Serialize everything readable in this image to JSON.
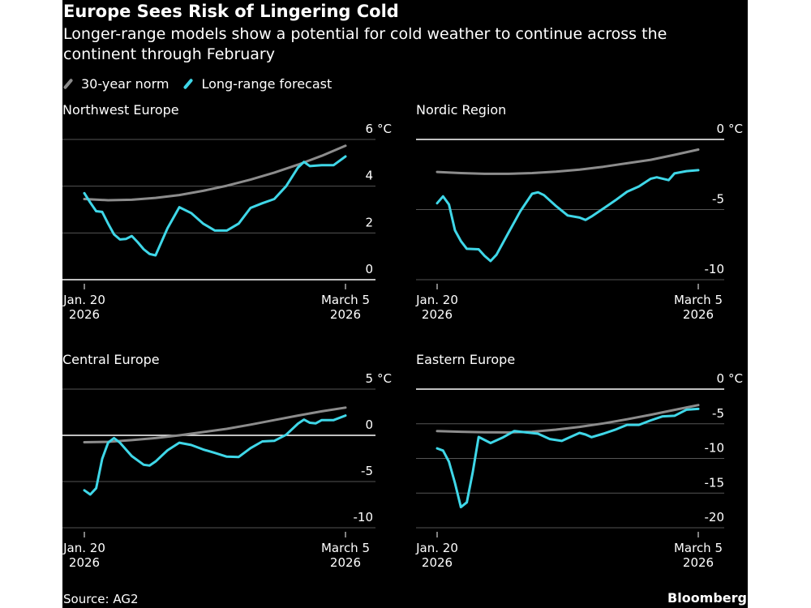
{
  "title": "Europe Sees Risk of Lingering Cold",
  "subtitle": "Longer-range models show a potential for cold weather to continue across the continent through February",
  "legend": [
    {
      "label": "30-year norm",
      "color": "#8c8c8c"
    },
    {
      "label": "Long-range forecast",
      "color": "#3fd7e8"
    }
  ],
  "source": "Source: AG2",
  "brand": "Bloomberg",
  "chart_data": [
    {
      "type": "line",
      "title": "Northwest Europe",
      "unit": "°C",
      "ylim": [
        0,
        6
      ],
      "yticks": [
        0,
        2,
        4,
        6
      ],
      "xlim": [
        "2026-01-20",
        "2026-03-05"
      ],
      "xticks": [
        {
          "line1": "Jan. 20",
          "line2": "2026"
        },
        {
          "line1": "March 5",
          "line2": "2026"
        }
      ],
      "grid": true,
      "series": [
        {
          "name": "30-year norm",
          "color": "#8c8c8c",
          "points": [
            [
              "2026-01-20",
              3.45
            ],
            [
              "2026-01-24",
              3.4
            ],
            [
              "2026-01-28",
              3.42
            ],
            [
              "2026-02-01",
              3.5
            ],
            [
              "2026-02-05",
              3.62
            ],
            [
              "2026-02-09",
              3.8
            ],
            [
              "2026-02-13",
              4.02
            ],
            [
              "2026-02-17",
              4.28
            ],
            [
              "2026-02-21",
              4.58
            ],
            [
              "2026-02-25",
              4.92
            ],
            [
              "2026-03-01",
              5.3
            ],
            [
              "2026-03-05",
              5.73
            ]
          ]
        },
        {
          "name": "Long-range forecast",
          "color": "#3fd7e8",
          "points": [
            [
              "2026-01-20",
              3.7
            ],
            [
              "2026-01-21",
              3.3
            ],
            [
              "2026-01-22",
              2.93
            ],
            [
              "2026-01-23",
              2.9
            ],
            [
              "2026-01-24",
              2.4
            ],
            [
              "2026-01-25",
              1.94
            ],
            [
              "2026-01-26",
              1.72
            ],
            [
              "2026-01-27",
              1.74
            ],
            [
              "2026-01-28",
              1.87
            ],
            [
              "2026-01-29",
              1.6
            ],
            [
              "2026-01-30",
              1.3
            ],
            [
              "2026-01-31",
              1.1
            ],
            [
              "2026-02-01",
              1.04
            ],
            [
              "2026-02-03",
              2.2
            ],
            [
              "2026-02-05",
              3.1
            ],
            [
              "2026-02-07",
              2.85
            ],
            [
              "2026-02-09",
              2.4
            ],
            [
              "2026-02-11",
              2.1
            ],
            [
              "2026-02-13",
              2.1
            ],
            [
              "2026-02-15",
              2.4
            ],
            [
              "2026-02-17",
              3.07
            ],
            [
              "2026-02-19",
              3.27
            ],
            [
              "2026-02-21",
              3.45
            ],
            [
              "2026-02-23",
              4.0
            ],
            [
              "2026-02-25",
              4.8
            ],
            [
              "2026-02-26",
              5.04
            ],
            [
              "2026-02-27",
              4.86
            ],
            [
              "2026-03-01",
              4.9
            ],
            [
              "2026-03-03",
              4.9
            ],
            [
              "2026-03-05",
              5.27
            ]
          ]
        }
      ]
    },
    {
      "type": "line",
      "title": "Nordic Region",
      "unit": "°C",
      "ylim": [
        -10,
        0
      ],
      "yticks": [
        -10,
        -5,
        0
      ],
      "xlim": [
        "2026-01-20",
        "2026-03-05"
      ],
      "xticks": [
        {
          "line1": "Jan. 20",
          "line2": "2026"
        },
        {
          "line1": "March 5",
          "line2": "2026"
        }
      ],
      "grid": true,
      "series": [
        {
          "name": "30-year norm",
          "color": "#8c8c8c",
          "points": [
            [
              "2026-01-20",
              -2.32
            ],
            [
              "2026-01-24",
              -2.4
            ],
            [
              "2026-01-28",
              -2.45
            ],
            [
              "2026-02-01",
              -2.45
            ],
            [
              "2026-02-05",
              -2.4
            ],
            [
              "2026-02-09",
              -2.3
            ],
            [
              "2026-02-13",
              -2.15
            ],
            [
              "2026-02-17",
              -1.95
            ],
            [
              "2026-02-21",
              -1.7
            ],
            [
              "2026-02-25",
              -1.45
            ],
            [
              "2026-03-01",
              -1.1
            ],
            [
              "2026-03-05",
              -0.72
            ]
          ]
        },
        {
          "name": "Long-range forecast",
          "color": "#3fd7e8",
          "points": [
            [
              "2026-01-20",
              -4.55
            ],
            [
              "2026-01-21",
              -4.06
            ],
            [
              "2026-01-22",
              -4.64
            ],
            [
              "2026-01-23",
              -6.48
            ],
            [
              "2026-01-24",
              -7.25
            ],
            [
              "2026-01-25",
              -7.8
            ],
            [
              "2026-01-27",
              -7.83
            ],
            [
              "2026-01-28",
              -8.3
            ],
            [
              "2026-01-29",
              -8.67
            ],
            [
              "2026-01-30",
              -8.22
            ],
            [
              "2026-02-01",
              -6.67
            ],
            [
              "2026-02-03",
              -5.13
            ],
            [
              "2026-02-05",
              -3.87
            ],
            [
              "2026-02-06",
              -3.77
            ],
            [
              "2026-02-07",
              -3.97
            ],
            [
              "2026-02-09",
              -4.74
            ],
            [
              "2026-02-11",
              -5.42
            ],
            [
              "2026-02-13",
              -5.57
            ],
            [
              "2026-02-14",
              -5.74
            ],
            [
              "2026-02-15",
              -5.5
            ],
            [
              "2026-02-17",
              -4.93
            ],
            [
              "2026-02-19",
              -4.35
            ],
            [
              "2026-02-21",
              -3.73
            ],
            [
              "2026-02-23",
              -3.35
            ],
            [
              "2026-02-25",
              -2.8
            ],
            [
              "2026-02-26",
              -2.7
            ],
            [
              "2026-02-28",
              -2.9
            ],
            [
              "2026-03-01",
              -2.42
            ],
            [
              "2026-03-03",
              -2.26
            ],
            [
              "2026-03-05",
              -2.19
            ]
          ]
        }
      ]
    },
    {
      "type": "line",
      "title": "Central Europe",
      "unit": "°C",
      "ylim": [
        -10,
        5
      ],
      "yticks": [
        -10,
        -5,
        0,
        5
      ],
      "xlim": [
        "2026-01-20",
        "2026-03-05"
      ],
      "xticks": [
        {
          "line1": "Jan. 20",
          "line2": "2026"
        },
        {
          "line1": "March 5",
          "line2": "2026"
        }
      ],
      "grid": true,
      "series": [
        {
          "name": "30-year norm",
          "color": "#8c8c8c",
          "points": [
            [
              "2026-01-20",
              -0.75
            ],
            [
              "2026-01-24",
              -0.7
            ],
            [
              "2026-01-28",
              -0.52
            ],
            [
              "2026-02-01",
              -0.3
            ],
            [
              "2026-02-05",
              0.0
            ],
            [
              "2026-02-09",
              0.35
            ],
            [
              "2026-02-13",
              0.7
            ],
            [
              "2026-02-17",
              1.16
            ],
            [
              "2026-02-21",
              1.65
            ],
            [
              "2026-02-25",
              2.14
            ],
            [
              "2026-03-01",
              2.6
            ],
            [
              "2026-03-05",
              3.0
            ]
          ]
        },
        {
          "name": "Long-range forecast",
          "color": "#3fd7e8",
          "points": [
            [
              "2026-01-20",
              -5.95
            ],
            [
              "2026-01-21",
              -6.4
            ],
            [
              "2026-01-22",
              -5.72
            ],
            [
              "2026-01-23",
              -2.54
            ],
            [
              "2026-01-24",
              -0.8
            ],
            [
              "2026-01-25",
              -0.3
            ],
            [
              "2026-01-26",
              -0.8
            ],
            [
              "2026-01-28",
              -2.25
            ],
            [
              "2026-01-30",
              -3.18
            ],
            [
              "2026-01-31",
              -3.27
            ],
            [
              "2026-02-01",
              -2.83
            ],
            [
              "2026-02-03",
              -1.62
            ],
            [
              "2026-02-05",
              -0.8
            ],
            [
              "2026-02-07",
              -1.04
            ],
            [
              "2026-02-09",
              -1.53
            ],
            [
              "2026-02-11",
              -1.9
            ],
            [
              "2026-02-13",
              -2.31
            ],
            [
              "2026-02-15",
              -2.34
            ],
            [
              "2026-02-17",
              -1.39
            ],
            [
              "2026-02-19",
              -0.66
            ],
            [
              "2026-02-21",
              -0.6
            ],
            [
              "2026-02-23",
              0.06
            ],
            [
              "2026-02-25",
              1.27
            ],
            [
              "2026-02-26",
              1.7
            ],
            [
              "2026-02-27",
              1.36
            ],
            [
              "2026-02-28",
              1.3
            ],
            [
              "2026-03-01",
              1.65
            ],
            [
              "2026-03-03",
              1.65
            ],
            [
              "2026-03-05",
              2.14
            ]
          ]
        }
      ]
    },
    {
      "type": "line",
      "title": "Eastern Europe",
      "unit": "°C",
      "ylim": [
        -20,
        0
      ],
      "yticks": [
        -20,
        -15,
        -10,
        -5,
        0
      ],
      "xlim": [
        "2026-01-20",
        "2026-03-05"
      ],
      "xticks": [
        {
          "line1": "Jan. 20",
          "line2": "2026"
        },
        {
          "line1": "March 5",
          "line2": "2026"
        }
      ],
      "grid": true,
      "series": [
        {
          "name": "30-year norm",
          "color": "#8c8c8c",
          "points": [
            [
              "2026-01-20",
              -6.05
            ],
            [
              "2026-01-24",
              -6.15
            ],
            [
              "2026-01-28",
              -6.22
            ],
            [
              "2026-02-01",
              -6.24
            ],
            [
              "2026-02-05",
              -6.15
            ],
            [
              "2026-02-09",
              -5.85
            ],
            [
              "2026-02-13",
              -5.45
            ],
            [
              "2026-02-17",
              -4.95
            ],
            [
              "2026-02-21",
              -4.35
            ],
            [
              "2026-02-25",
              -3.7
            ],
            [
              "2026-03-01",
              -3.0
            ],
            [
              "2026-03-05",
              -2.3
            ]
          ]
        },
        {
          "name": "Long-range forecast",
          "color": "#3fd7e8",
          "points": [
            [
              "2026-01-20",
              -8.55
            ],
            [
              "2026-01-21",
              -8.86
            ],
            [
              "2026-01-22",
              -10.48
            ],
            [
              "2026-01-23",
              -13.56
            ],
            [
              "2026-01-24",
              -17.03
            ],
            [
              "2026-01-25",
              -16.34
            ],
            [
              "2026-01-26",
              -12.0
            ],
            [
              "2026-01-27",
              -6.9
            ],
            [
              "2026-01-29",
              -7.78
            ],
            [
              "2026-01-31",
              -7.0
            ],
            [
              "2026-02-02",
              -6.05
            ],
            [
              "2026-02-04",
              -6.24
            ],
            [
              "2026-02-06",
              -6.43
            ],
            [
              "2026-02-08",
              -7.2
            ],
            [
              "2026-02-10",
              -7.47
            ],
            [
              "2026-02-12",
              -6.7
            ],
            [
              "2026-02-13",
              -6.32
            ],
            [
              "2026-02-14",
              -6.55
            ],
            [
              "2026-02-15",
              -6.94
            ],
            [
              "2026-02-17",
              -6.43
            ],
            [
              "2026-02-19",
              -5.86
            ],
            [
              "2026-02-21",
              -5.16
            ],
            [
              "2026-02-23",
              -5.16
            ],
            [
              "2026-02-25",
              -4.5
            ],
            [
              "2026-02-27",
              -3.93
            ],
            [
              "2026-03-01",
              -3.85
            ],
            [
              "2026-03-03",
              -2.97
            ],
            [
              "2026-03-05",
              -2.85
            ]
          ]
        }
      ]
    }
  ]
}
